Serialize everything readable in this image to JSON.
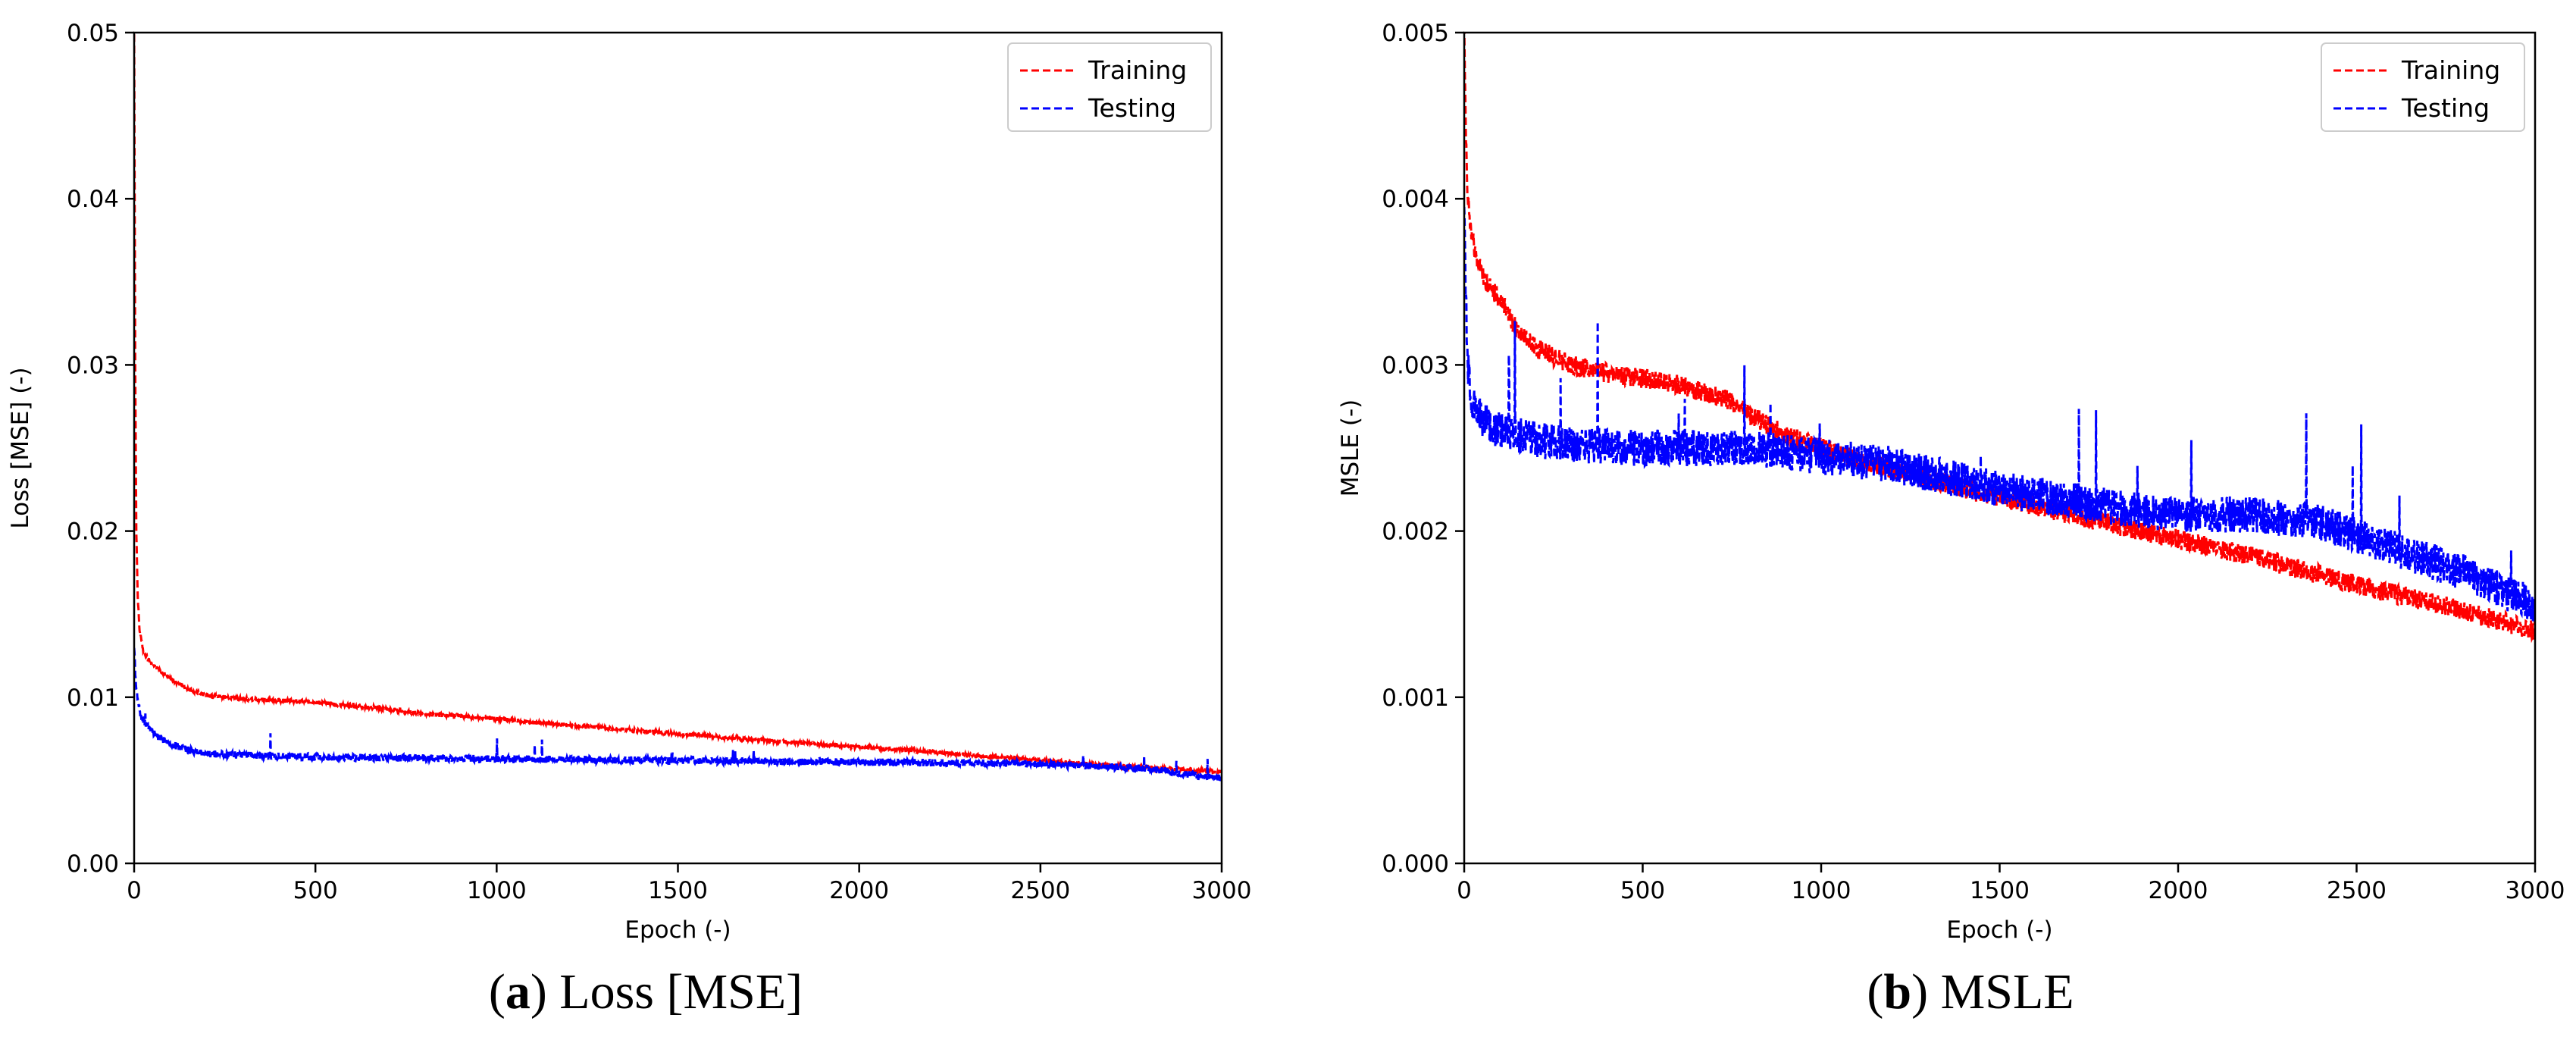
{
  "chart_data": [
    {
      "id": "a",
      "type": "line",
      "title": "",
      "caption_letter": "a",
      "caption_text": "Loss [MSE]",
      "xlabel": "Epoch (-)",
      "ylabel": "Loss [MSE] (-)",
      "xlim": [
        0,
        3000
      ],
      "ylim": [
        0,
        0.05
      ],
      "xticks": [
        0,
        500,
        1000,
        1500,
        2000,
        2500,
        3000
      ],
      "xtick_labels": [
        "0",
        "500",
        "1000",
        "1500",
        "2000",
        "2500",
        "3000"
      ],
      "yticks": [
        0,
        0.01,
        0.02,
        0.03,
        0.04,
        0.05
      ],
      "ytick_labels": [
        "0.00",
        "0.01",
        "0.02",
        "0.03",
        "0.04",
        "0.05"
      ],
      "grid": false,
      "legend_position": "top-right",
      "series": [
        {
          "name": "Training",
          "color": "#ff0000",
          "style": "dashed",
          "noise": 0.00012,
          "x": [
            0,
            3,
            6,
            10,
            15,
            25,
            40,
            60,
            100,
            150,
            200,
            300,
            400,
            500,
            600,
            700,
            800,
            1000,
            1200,
            1500,
            1800,
            2000,
            2200,
            2500,
            2700,
            3000
          ],
          "y": [
            0.05,
            0.03,
            0.02,
            0.016,
            0.014,
            0.0128,
            0.0122,
            0.0118,
            0.0111,
            0.0105,
            0.0101,
            0.0099,
            0.0098,
            0.0097,
            0.0095,
            0.0093,
            0.009,
            0.0087,
            0.0083,
            0.0078,
            0.0073,
            0.007,
            0.0067,
            0.0062,
            0.0059,
            0.0055
          ]
        },
        {
          "name": "Testing",
          "color": "#0000ff",
          "style": "dashed",
          "noise": 0.00022,
          "x": [
            0,
            3,
            6,
            10,
            20,
            40,
            60,
            100,
            150,
            200,
            300,
            500,
            1000,
            1500,
            2000,
            2500,
            2800,
            3000
          ],
          "y": [
            0.013,
            0.0115,
            0.0105,
            0.0097,
            0.0088,
            0.0082,
            0.0077,
            0.0072,
            0.0068,
            0.0066,
            0.0065,
            0.0064,
            0.0063,
            0.0062,
            0.0061,
            0.006,
            0.0057,
            0.0051
          ]
        }
      ]
    },
    {
      "id": "b",
      "type": "line",
      "title": "",
      "caption_letter": "b",
      "caption_text": "MSLE",
      "xlabel": "Epoch (-)",
      "ylabel": "MSLE (-)",
      "xlim": [
        0,
        3000
      ],
      "ylim": [
        0,
        0.005
      ],
      "xticks": [
        0,
        500,
        1000,
        1500,
        2000,
        2500,
        3000
      ],
      "xtick_labels": [
        "0",
        "500",
        "1000",
        "1500",
        "2000",
        "2500",
        "3000"
      ],
      "yticks": [
        0,
        0.001,
        0.002,
        0.003,
        0.004,
        0.005
      ],
      "ytick_labels": [
        "0.000",
        "0.001",
        "0.002",
        "0.003",
        "0.004",
        "0.005"
      ],
      "grid": false,
      "legend_position": "top-right",
      "series": [
        {
          "name": "Training",
          "color": "#ff0000",
          "style": "dashed",
          "noise": 6e-05,
          "x": [
            0,
            3,
            6,
            10,
            20,
            40,
            60,
            100,
            150,
            200,
            300,
            400,
            500,
            600,
            700,
            750,
            800,
            900,
            1000,
            1200,
            1500,
            1800,
            2000,
            2200,
            2500,
            2800,
            3000
          ],
          "y": [
            0.005,
            0.0046,
            0.0043,
            0.004,
            0.0038,
            0.0036,
            0.0035,
            0.0034,
            0.0032,
            0.0031,
            0.003,
            0.00295,
            0.00292,
            0.00288,
            0.00282,
            0.00278,
            0.0027,
            0.00258,
            0.0025,
            0.00237,
            0.0022,
            0.00205,
            0.00195,
            0.00185,
            0.00168,
            0.00152,
            0.0014
          ]
        },
        {
          "name": "Testing",
          "color": "#0000ff",
          "style": "dashed",
          "noise": 0.00011,
          "x": [
            0,
            3,
            6,
            10,
            20,
            40,
            60,
            100,
            150,
            200,
            300,
            500,
            800,
            1000,
            1200,
            1500,
            1800,
            2000,
            2200,
            2400,
            2600,
            2800,
            3000
          ],
          "y": [
            0.004,
            0.0036,
            0.0033,
            0.003,
            0.0028,
            0.0027,
            0.00265,
            0.0026,
            0.00258,
            0.00255,
            0.00252,
            0.0025,
            0.0025,
            0.00245,
            0.0024,
            0.00225,
            0.00215,
            0.0021,
            0.0021,
            0.00205,
            0.0019,
            0.00175,
            0.00155
          ]
        }
      ]
    }
  ]
}
